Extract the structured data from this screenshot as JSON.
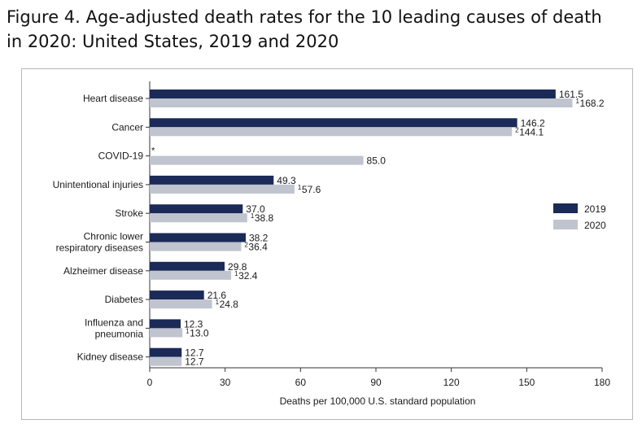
{
  "title_line1": "Figure 4. Age-adjusted death rates for the 10 leading causes of death",
  "title_line2": "in 2020: United States, 2019 and 2020",
  "chart_data": {
    "type": "bar",
    "orientation": "horizontal",
    "xlabel": "Deaths per 100,000 U.S. standard population",
    "xlim": [
      0,
      180
    ],
    "xticks": [
      "0",
      "30",
      "60",
      "90",
      "120",
      "150",
      "180"
    ],
    "grid": false,
    "legend_position": "right",
    "categories": [
      {
        "label": [
          "Heart disease"
        ]
      },
      {
        "label": [
          "Cancer"
        ]
      },
      {
        "label": [
          "COVID-19"
        ],
        "note_2019": "*"
      },
      {
        "label": [
          "Unintentional injuries"
        ]
      },
      {
        "label": [
          "Stroke"
        ]
      },
      {
        "label": [
          "Chronic lower",
          "respiratory diseases"
        ]
      },
      {
        "label": [
          "Alzheimer disease"
        ]
      },
      {
        "label": [
          "Diabetes"
        ]
      },
      {
        "label": [
          "Influenza and",
          "pneumonia"
        ]
      },
      {
        "label": [
          "Kidney disease"
        ]
      }
    ],
    "series": [
      {
        "name": "2019",
        "color": "#1b2a57",
        "values": [
          161.5,
          146.2,
          null,
          49.3,
          37.0,
          38.2,
          29.8,
          21.6,
          12.3,
          12.7
        ],
        "value_labels": [
          "161.5",
          "146.2",
          "",
          "49.3",
          "37.0",
          "38.2",
          "29.8",
          "21.6",
          "12.3",
          "12.7"
        ],
        "markers": [
          "",
          "",
          "",
          "",
          "",
          "",
          "",
          "",
          "",
          ""
        ]
      },
      {
        "name": "2020",
        "color": "#c0c4cf",
        "values": [
          168.2,
          144.1,
          85.0,
          57.6,
          38.8,
          36.4,
          32.4,
          24.8,
          13.0,
          12.7
        ],
        "value_labels": [
          "168.2",
          "144.1",
          "85.0",
          "57.6",
          "38.8",
          "36.4",
          "32.4",
          "24.8",
          "13.0",
          "12.7"
        ],
        "markers": [
          "1",
          "2",
          "",
          "1",
          "1",
          "2",
          "1",
          "1",
          "1",
          ""
        ]
      }
    ]
  }
}
